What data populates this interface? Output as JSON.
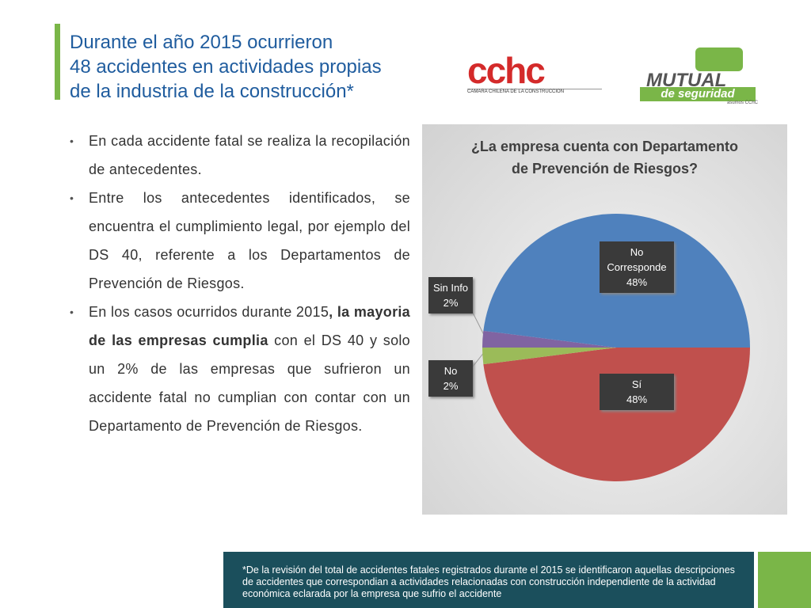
{
  "header": {
    "title": [
      "Durante el año 2015 ocurrieron",
      "48 accidentes en actividades propias",
      "de la industria de la construcción*"
    ]
  },
  "logos": {
    "cchc": "CAMARA CHILENA DE LA CONSTRUCCION",
    "mutual": "MUTUAL",
    "mutual_sub": "de seguridad",
    "mutual_tag": "asumos CChC"
  },
  "bullets": [
    [
      {
        "text": "En cada accidente fatal se realiza la recopilación de antecedentes.",
        "bold": false
      }
    ],
    [
      {
        "text": "Entre los antecedentes identificados, se encuentra el cumplimiento legal, por ejemplo del DS 40, referente a los Departamentos de Prevención de Riesgos.",
        "bold": false
      }
    ],
    [
      {
        "text": "En los casos ocurridos durante 2015",
        "bold": false
      },
      {
        "text": ", la mayoria de las empresas cumplia",
        "bold": true
      },
      {
        "text": " con el DS 40 y solo un 2% de las empresas que sufrieron un accidente fatal no cumplian con contar con un Departamento de Prevención de Riesgos.",
        "bold": false
      }
    ]
  ],
  "chart_data": {
    "type": "pie",
    "title": [
      "¿La empresa cuenta con Departamento",
      "de Prevención de Riesgos?"
    ],
    "categories": [
      "Sí",
      "No",
      "Sin Info",
      "No Corresponde"
    ],
    "values": [
      48,
      2,
      2,
      48
    ],
    "value_labels": [
      "48%",
      "2%",
      "2%",
      "48%"
    ],
    "colors": [
      "#c0504d",
      "#9bbb59",
      "#8064a2",
      "#4f81bd"
    ]
  },
  "footnote": "*De la revisión del total de accidentes fatales registrados durante el 2015 se identificaron aquellas descripciones de accidentes que correspondian a actividades relacionadas con construcción independiente de la actividad económica eclarada por la empresa que sufrio el accidente"
}
